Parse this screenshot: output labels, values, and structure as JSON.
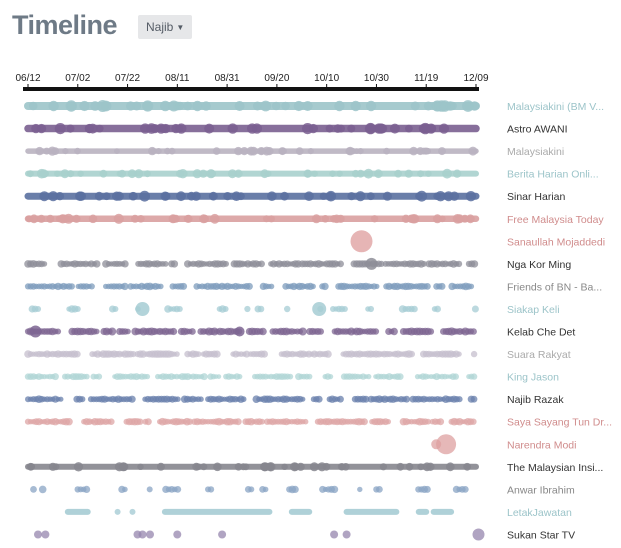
{
  "header": {
    "title": "Timeline",
    "filter_value": "Najib"
  },
  "chart_data": {
    "type": "scatter",
    "title": "Timeline",
    "x_ticks": [
      "06/12",
      "07/02",
      "07/22",
      "08/11",
      "08/31",
      "09/20",
      "10/10",
      "10/30",
      "11/19",
      "12/09"
    ],
    "x_range": [
      "06/12",
      "12/09"
    ],
    "grid": false,
    "series": [
      {
        "name": "Malaysiakini (BM V...",
        "color": "#9cc4c9",
        "label_color": "#9cc4c9",
        "pattern": "continuous",
        "size": 1.6,
        "bigs": [
          {
            "x": 30,
            "r": 6
          },
          {
            "x": 85,
            "r": 5
          }
        ]
      },
      {
        "name": "Astro AWANI",
        "color": "#7a5f90",
        "label_color": "#333333",
        "pattern": "continuous",
        "size": 1.5,
        "bigs": [
          {
            "x": 26,
            "r": 5
          }
        ]
      },
      {
        "name": "Malaysiakini",
        "color": "#b9b2c0",
        "label_color": "#aaaaaa",
        "pattern": "continuous",
        "size": 1.1,
        "bigs": []
      },
      {
        "name": "Berita Harian Onli...",
        "color": "#a8d0cd",
        "label_color": "#9cc4c9",
        "pattern": "continuous",
        "size": 1.2,
        "bigs": []
      },
      {
        "name": "Sinar Harian",
        "color": "#5a70a0",
        "label_color": "#333333",
        "pattern": "continuous",
        "size": 1.4,
        "bigs": []
      },
      {
        "name": "Free Malaysia Today",
        "color": "#d9a0a0",
        "label_color": "#d08c8c",
        "pattern": "continuous",
        "size": 1.3,
        "bigs": []
      },
      {
        "name": "Sanaullah Mojaddedi",
        "color": "#dd9c9c",
        "label_color": "#d08c8c",
        "pattern": "single",
        "points": [
          {
            "x": 134,
            "r": 11
          }
        ]
      },
      {
        "name": "Nga Kor Ming",
        "color": "#8e8e98",
        "label_color": "#333333",
        "pattern": "dense",
        "size": 1.0,
        "bigs": [
          {
            "x": 138,
            "r": 6
          }
        ]
      },
      {
        "name": "Friends of BN - Ba...",
        "color": "#7e9cbc",
        "label_color": "#888888",
        "pattern": "dense",
        "size": 1.0,
        "bigs": []
      },
      {
        "name": "Siakap Keli",
        "color": "#a6ccd4",
        "label_color": "#9cc4c9",
        "pattern": "sparse",
        "size": 1.0,
        "bigs": [
          {
            "x": 46,
            "r": 7
          },
          {
            "x": 117,
            "r": 7
          }
        ]
      },
      {
        "name": "Kelab Che Det",
        "color": "#7d6592",
        "label_color": "#333333",
        "pattern": "dense",
        "size": 1.1,
        "bigs": [
          {
            "x": 3,
            "r": 6
          },
          {
            "x": 85,
            "r": 5
          }
        ]
      },
      {
        "name": "Suara Rakyat",
        "color": "#c6bfcd",
        "label_color": "#aaaaaa",
        "pattern": "dense",
        "size": 1.0,
        "bigs": []
      },
      {
        "name": "King Jason",
        "color": "#b0d6d6",
        "label_color": "#9cc4c9",
        "pattern": "dense",
        "size": 0.9,
        "bigs": []
      },
      {
        "name": "Najib Razak",
        "color": "#6a80ac",
        "label_color": "#333333",
        "pattern": "dense",
        "size": 1.0,
        "bigs": []
      },
      {
        "name": "Saya Sayang Tun Dr...",
        "color": "#dea6a6",
        "label_color": "#d08c8c",
        "pattern": "dense",
        "size": 1.0,
        "bigs": []
      },
      {
        "name": "Narendra Modi",
        "color": "#dea0a0",
        "label_color": "#d08c8c",
        "pattern": "single",
        "points": [
          {
            "x": 164,
            "r": 5
          },
          {
            "x": 168,
            "r": 10
          }
        ]
      },
      {
        "name": "The Malaysian Insi...",
        "color": "#86868e",
        "label_color": "#333333",
        "pattern": "continuous",
        "size": 1.2,
        "bigs": []
      },
      {
        "name": "Anwar Ibrahim",
        "color": "#8aa4c4",
        "label_color": "#888888",
        "pattern": "sparse",
        "size": 1.0,
        "bigs": []
      },
      {
        "name": "LetakJawatan",
        "color": "#a6ccd4",
        "label_color": "#9cc4c9",
        "pattern": "segments",
        "size": 1.0,
        "bigs": []
      },
      {
        "name": "Sukan Star TV",
        "color": "#9686ae",
        "label_color": "#333333",
        "pattern": "rare",
        "points": [
          {
            "x": 4,
            "r": 4
          },
          {
            "x": 7,
            "r": 4
          },
          {
            "x": 44,
            "r": 4
          },
          {
            "x": 46,
            "r": 4
          },
          {
            "x": 49,
            "r": 4
          },
          {
            "x": 60,
            "r": 4
          },
          {
            "x": 78,
            "r": 4
          },
          {
            "x": 123,
            "r": 4
          },
          {
            "x": 128,
            "r": 4
          },
          {
            "x": 181,
            "r": 6
          }
        ]
      }
    ]
  }
}
